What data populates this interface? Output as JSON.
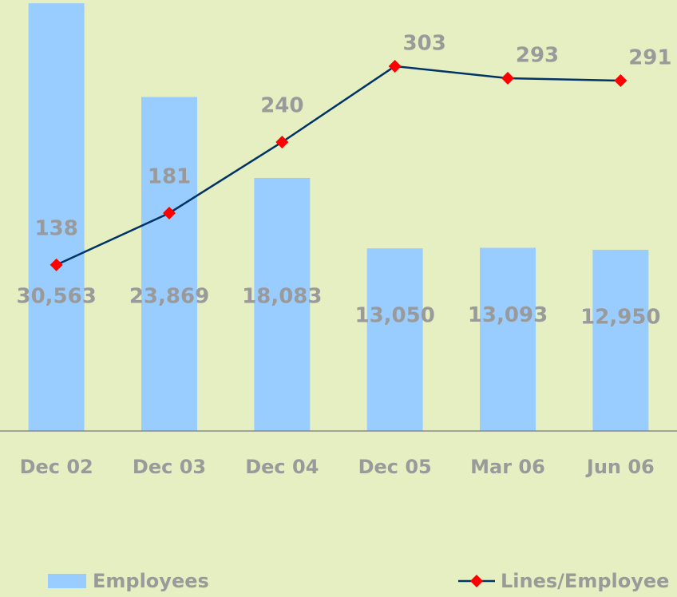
{
  "chart_data": {
    "type": "bar-line",
    "categories": [
      "Dec 02",
      "Dec 03",
      "Dec 04",
      "Dec 05",
      "Mar 06",
      "Jun 06"
    ],
    "series": [
      {
        "name": "Employees",
        "type": "bar",
        "color": "#99ccff",
        "values": [
          30563,
          23869,
          18083,
          13050,
          13093,
          12950
        ],
        "value_labels": [
          "30,563",
          "23,869",
          "18,083",
          "13,050",
          "13,093",
          "12,950"
        ]
      },
      {
        "name": "Lines/Employee",
        "type": "line",
        "axis": "y2",
        "color": "#003366",
        "marker_color": "#ff0000",
        "values": [
          138,
          181,
          240,
          303,
          293,
          291
        ]
      }
    ],
    "ylim": [
      0,
      30800
    ],
    "y2lim": [
      0,
      358
    ],
    "legend": "bottom"
  }
}
